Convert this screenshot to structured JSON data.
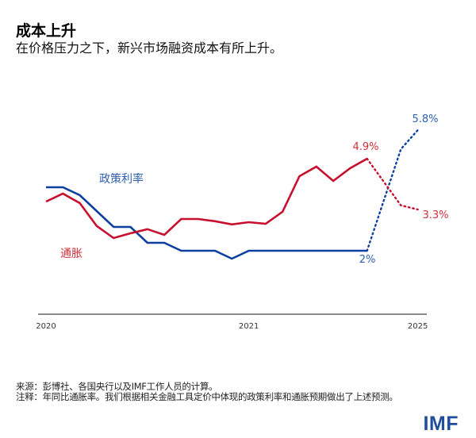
{
  "header": {
    "title": "成本上升",
    "subtitle": "在价格压力之下，新兴市场融资成本有所上升。"
  },
  "chart_data": {
    "type": "line",
    "title": "成本上升",
    "subtitle": "在价格压力之下，新兴市场融资成本有所上升。",
    "x_ticks": [
      {
        "label": "2020",
        "index": 0
      },
      {
        "label": "2021",
        "index": 12
      },
      {
        "label": "2025",
        "index": 22
      }
    ],
    "ylim": [
      0,
      6
    ],
    "grid": false,
    "series": [
      {
        "name": "政策利率",
        "color": "#0b3fa0",
        "label_color": "#2e5fb0",
        "values": [
          4.0,
          4.0,
          3.75,
          3.25,
          2.75,
          2.75,
          2.25,
          2.25,
          2.0,
          2.0,
          2.0,
          1.75,
          2.0,
          2.0,
          2.0,
          2.0,
          2.0,
          2.0,
          2.0,
          2.0
        ],
        "forecast": [
          {
            "index": 19,
            "value": 2.0
          },
          {
            "index": 21,
            "value": 5.2
          },
          {
            "index": 22,
            "value": 5.8
          }
        ],
        "end_label": "2%",
        "forecast_label": "5.8%"
      },
      {
        "name": "通胀",
        "color": "#c8102e",
        "label_color": "#d0303a",
        "values": [
          3.55,
          3.8,
          3.5,
          2.78,
          2.4,
          2.55,
          2.68,
          2.5,
          3.0,
          3.0,
          2.93,
          2.83,
          2.9,
          2.85,
          3.23,
          4.35,
          4.65,
          4.2,
          4.6,
          4.9
        ],
        "forecast": [
          {
            "index": 19,
            "value": 4.9
          },
          {
            "index": 21,
            "value": 3.43
          },
          {
            "index": 22,
            "value": 3.3
          }
        ],
        "end_label": "4.9%",
        "forecast_label": "3.3%"
      }
    ]
  },
  "footer": {
    "source": "来源：彭博社、各国央行以及IMF工作人员的计算。",
    "note": "注释：年同比通胀率。我们根据相关金融工具定价中体现的政策利率和通胀预期做出了上述预测。",
    "logo": "IMF"
  }
}
